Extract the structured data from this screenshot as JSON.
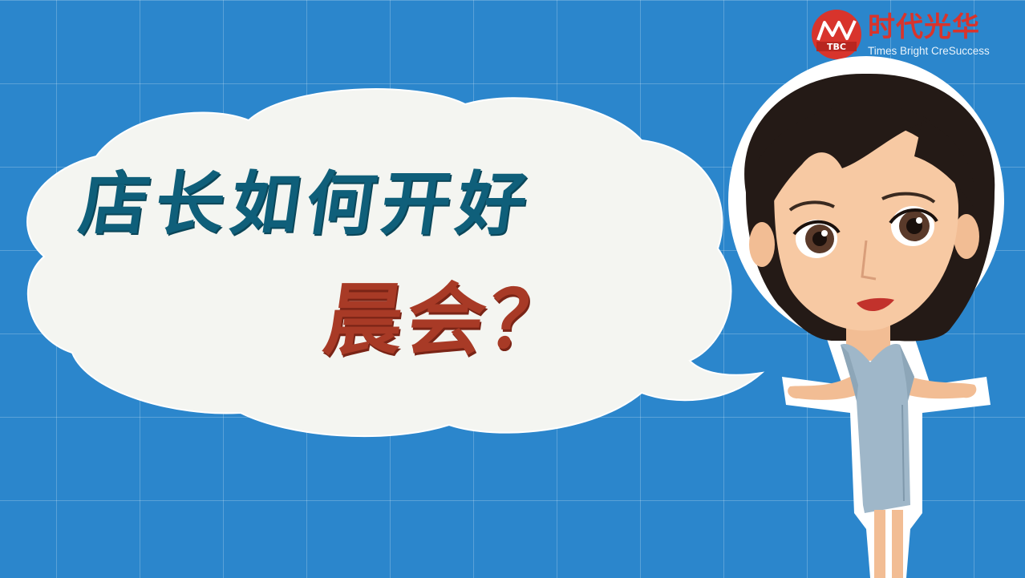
{
  "brand": {
    "name_cn": "时代光华",
    "name_en": "Times Bright CreSuccess",
    "mark_text": "TBC",
    "icon": "tbc-logo-icon",
    "color": "#d8342c"
  },
  "speech_bubble": {
    "line1": "店长如何开好",
    "line2": "晨会？",
    "line1_color": "#0f5f7a",
    "line2_color": "#a83a26"
  },
  "character": {
    "icon": "cartoon-woman-illustration"
  },
  "background": {
    "color": "#2b86cc",
    "pattern": "grid"
  }
}
